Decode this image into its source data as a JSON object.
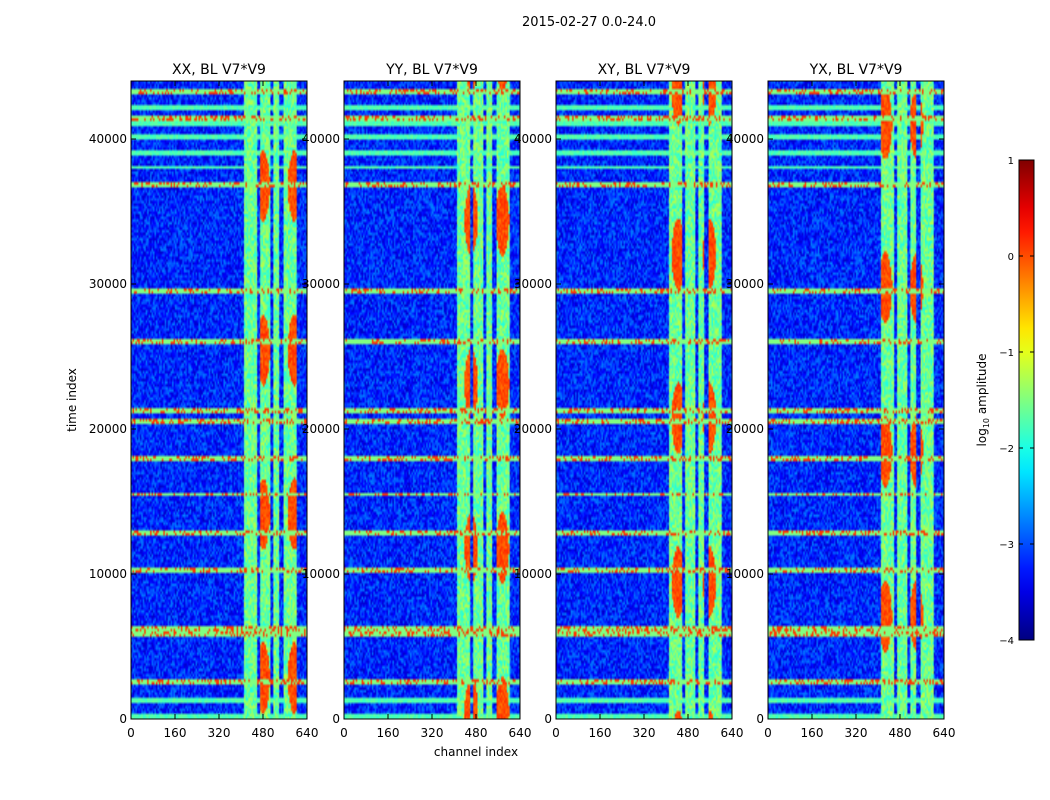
{
  "chart_data": {
    "type": "heatmap",
    "suptitle": "2015-02-27 0.0-24.0",
    "panels": [
      {
        "title": "XX, BL V7*V9",
        "pol": "XX"
      },
      {
        "title": "YY, BL V7*V9",
        "pol": "YY"
      },
      {
        "title": "XY, BL V7*V9",
        "pol": "XY"
      },
      {
        "title": "YX, BL V7*V9",
        "pol": "YX"
      }
    ],
    "xlabel": "channel index",
    "ylabel": "time index",
    "x_ticks": [
      "0",
      "160",
      "320",
      "480",
      "640"
    ],
    "x_tick_values": [
      0,
      160,
      320,
      480,
      640
    ],
    "y_ticks": [
      "0",
      "10000",
      "20000",
      "30000",
      "40000"
    ],
    "y_tick_values": [
      0,
      10000,
      20000,
      30000,
      40000
    ],
    "xlim": [
      0,
      640
    ],
    "ylim": [
      0,
      44000
    ],
    "colorbar": {
      "label": "log10 amplitude",
      "ticks": [
        "1",
        "0",
        "−1",
        "−2",
        "−3",
        "−4"
      ],
      "tick_values": [
        1,
        0,
        -1,
        -2,
        -3,
        -4
      ],
      "range": [
        -4,
        1
      ],
      "colormap": "jet"
    },
    "description_levels": {
      "background": -3.2,
      "high_band_channels": [
        [
          410,
          460
        ],
        [
          470,
          505
        ],
        [
          515,
          540
        ],
        [
          555,
          600
        ]
      ],
      "flag_rows": [
        2500,
        5800,
        6300,
        10200,
        12800,
        15500,
        18000,
        20500,
        21300,
        26000,
        29500,
        36900,
        41500,
        43200
      ]
    }
  }
}
